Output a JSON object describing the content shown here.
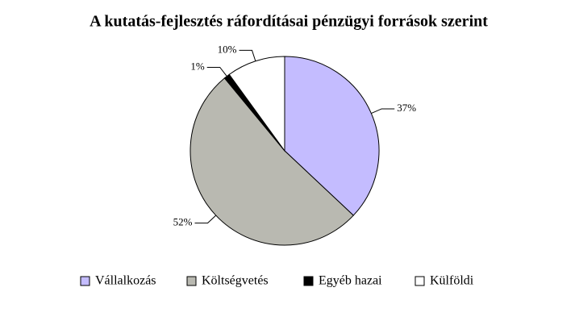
{
  "chart_data": {
    "type": "pie",
    "title": "A kutatás-fejlesztés ráfordításai pénzügyi források szerint",
    "categories": [
      "Vállalkozás",
      "Költségvetés",
      "Egyéb hazai",
      "Külföldi"
    ],
    "values": [
      37,
      52,
      1,
      10
    ],
    "value_labels": [
      "37%",
      "52%",
      "1%",
      "10%"
    ],
    "colors": [
      "#c4bcff",
      "#b9b9b1",
      "#000000",
      "#ffffff"
    ],
    "legend": "bottom"
  }
}
